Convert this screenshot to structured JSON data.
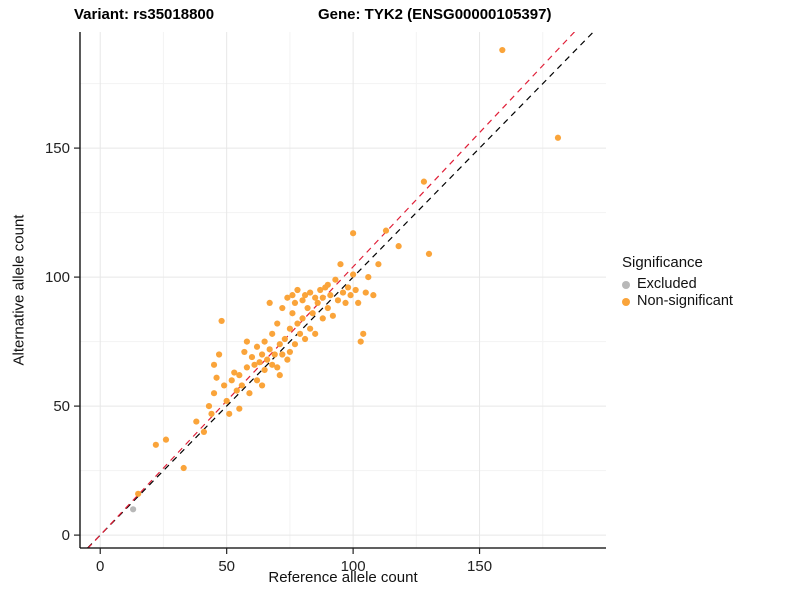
{
  "chart_data": {
    "type": "scatter",
    "title_left": "Variant: rs35018800",
    "title_right": "Gene: TYK2 (ENSG00000105397)",
    "xlabel": "Reference allele count",
    "ylabel": "Alternative allele count",
    "legend_title": "Significance",
    "legend_position": "right",
    "grid": true,
    "xlim": [
      -8,
      200
    ],
    "ylim": [
      -5,
      195
    ],
    "xticks": [
      0,
      50,
      100,
      150
    ],
    "yticks": [
      0,
      50,
      100,
      150
    ],
    "series": [
      {
        "name": "Excluded",
        "color": "#b8b8b8",
        "points": [
          [
            13,
            10
          ]
        ]
      },
      {
        "name": "Non-significant",
        "color": "#faa43a",
        "points": [
          [
            15,
            16
          ],
          [
            22,
            35
          ],
          [
            26,
            37
          ],
          [
            33,
            26
          ],
          [
            38,
            44
          ],
          [
            41,
            40
          ],
          [
            43,
            50
          ],
          [
            44,
            47
          ],
          [
            45,
            55
          ],
          [
            45,
            66
          ],
          [
            46,
            61
          ],
          [
            47,
            70
          ],
          [
            48,
            83
          ],
          [
            49,
            58
          ],
          [
            50,
            52
          ],
          [
            51,
            47
          ],
          [
            52,
            60
          ],
          [
            53,
            63
          ],
          [
            54,
            56
          ],
          [
            55,
            49
          ],
          [
            55,
            62
          ],
          [
            56,
            58
          ],
          [
            57,
            71
          ],
          [
            58,
            65
          ],
          [
            58,
            75
          ],
          [
            59,
            55
          ],
          [
            60,
            69
          ],
          [
            61,
            66
          ],
          [
            62,
            60
          ],
          [
            62,
            73
          ],
          [
            63,
            67
          ],
          [
            64,
            58
          ],
          [
            64,
            70
          ],
          [
            65,
            64
          ],
          [
            65,
            75
          ],
          [
            66,
            68
          ],
          [
            67,
            72
          ],
          [
            67,
            90
          ],
          [
            68,
            66
          ],
          [
            68,
            78
          ],
          [
            69,
            70
          ],
          [
            70,
            65
          ],
          [
            70,
            82
          ],
          [
            71,
            62
          ],
          [
            71,
            74
          ],
          [
            72,
            70
          ],
          [
            72,
            88
          ],
          [
            73,
            76
          ],
          [
            74,
            68
          ],
          [
            74,
            92
          ],
          [
            75,
            71
          ],
          [
            75,
            80
          ],
          [
            76,
            86
          ],
          [
            76,
            93
          ],
          [
            77,
            74
          ],
          [
            77,
            90
          ],
          [
            78,
            82
          ],
          [
            78,
            95
          ],
          [
            79,
            78
          ],
          [
            80,
            84
          ],
          [
            80,
            91
          ],
          [
            81,
            76
          ],
          [
            81,
            93
          ],
          [
            82,
            88
          ],
          [
            83,
            80
          ],
          [
            83,
            94
          ],
          [
            84,
            86
          ],
          [
            85,
            78
          ],
          [
            85,
            92
          ],
          [
            86,
            90
          ],
          [
            87,
            95
          ],
          [
            88,
            84
          ],
          [
            88,
            92
          ],
          [
            89,
            96
          ],
          [
            90,
            88
          ],
          [
            90,
            97
          ],
          [
            91,
            93
          ],
          [
            92,
            85
          ],
          [
            93,
            99
          ],
          [
            94,
            91
          ],
          [
            95,
            105
          ],
          [
            96,
            94
          ],
          [
            97,
            90
          ],
          [
            98,
            96
          ],
          [
            99,
            93
          ],
          [
            100,
            101
          ],
          [
            100,
            117
          ],
          [
            101,
            95
          ],
          [
            102,
            90
          ],
          [
            103,
            75
          ],
          [
            104,
            78
          ],
          [
            105,
            94
          ],
          [
            106,
            100
          ],
          [
            108,
            93
          ],
          [
            110,
            105
          ],
          [
            113,
            118
          ],
          [
            118,
            112
          ],
          [
            128,
            137
          ],
          [
            130,
            109
          ],
          [
            159,
            188
          ],
          [
            181,
            154
          ]
        ]
      }
    ],
    "lines": [
      {
        "name": "identity",
        "color": "#000000",
        "dashed": true,
        "slope": 1.0,
        "intercept": 0
      },
      {
        "name": "fit",
        "color": "#e01e37",
        "dashed": true,
        "slope": 1.04,
        "intercept": 0
      }
    ]
  }
}
